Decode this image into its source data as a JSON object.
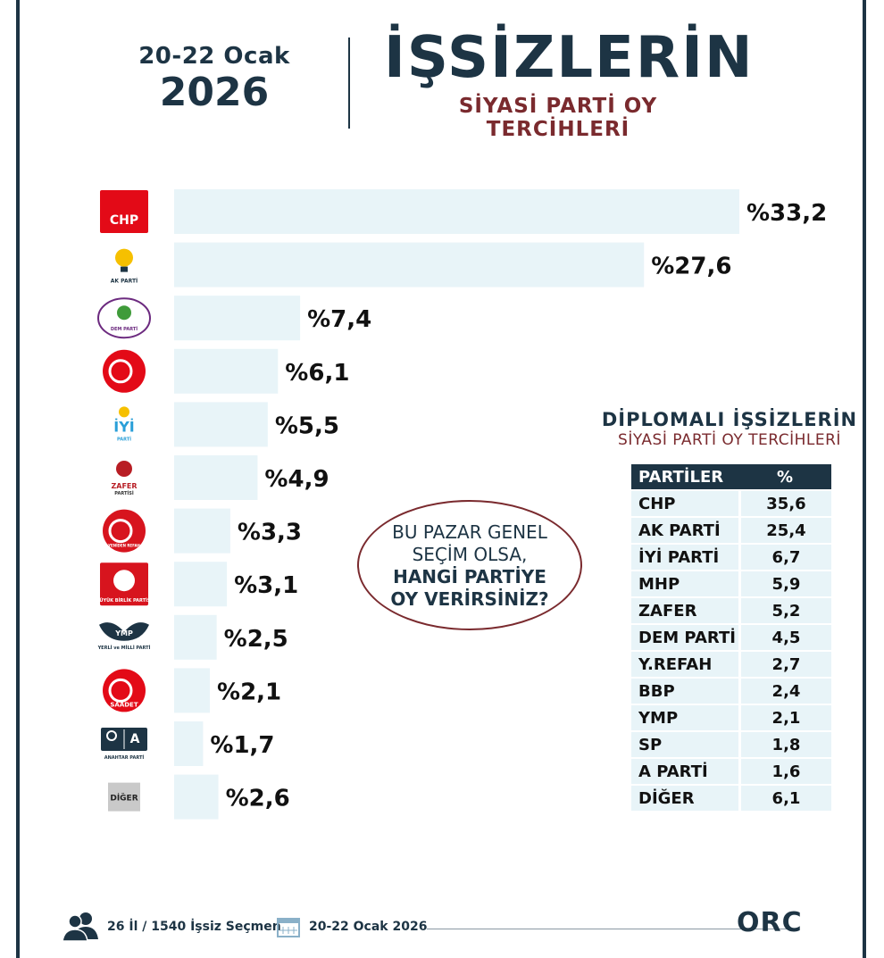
{
  "header": {
    "date_range": "20-22 Ocak",
    "year": "2026",
    "title": "İŞSİZLERİN",
    "subtitle": "SİYASİ PARTİ OY TERCİHLERİ"
  },
  "chart_data": {
    "type": "bar",
    "orientation": "horizontal",
    "categories": [
      "CHP",
      "AK PARTİ",
      "DEM PARTİ",
      "MHP",
      "İYİ",
      "ZAFER",
      "YENİDEN REFAH",
      "BBP",
      "YMP",
      "SAADET",
      "ANAHTAR PARTİ",
      "DİĞER"
    ],
    "values": [
      33.2,
      27.6,
      7.4,
      6.1,
      5.5,
      4.9,
      3.3,
      3.1,
      2.5,
      2.1,
      1.7,
      2.6
    ],
    "value_labels": [
      "%33,2",
      "%27,6",
      "%7,4",
      "%6,1",
      "%5,5",
      "%4,9",
      "%3,3",
      "%3,1",
      "%2,5",
      "%2,1",
      "%1,7",
      "%2,6"
    ],
    "logo_texts": [
      "CHP",
      "AK PARTİ",
      "DEM PARTİ",
      "",
      "İYİ",
      "ZAFER",
      "YENİDEN REFAH",
      "BÜYÜK BİRLİK PARTİSİ",
      "YMP",
      "SAADET",
      "A",
      "DİĞER"
    ],
    "logo_subtexts": [
      "",
      "",
      "",
      "",
      "PARTİ",
      "PARTİSİ",
      "",
      "",
      "YERLİ ve MİLLİ PARTİ",
      "",
      "ANAHTAR PARTİ",
      ""
    ],
    "bar_color": "#e8f4f8"
  },
  "callout": {
    "line1": "BU PAZAR GENEL",
    "line2": "SEÇİM OLSA,",
    "line3": "HANGİ PARTİYE",
    "line4": "OY VERİRSİNİZ?"
  },
  "side_table": {
    "title": "DİPLOMALI İŞSİZLERİN",
    "subtitle": "SİYASİ PARTİ OY TERCİHLERİ",
    "header_party": "PARTİLER",
    "header_pct": "%",
    "rows": [
      {
        "party": "CHP",
        "value": "35,6"
      },
      {
        "party": "AK PARTİ",
        "value": "25,4"
      },
      {
        "party": "İYİ PARTİ",
        "value": "6,7"
      },
      {
        "party": "MHP",
        "value": "5,9"
      },
      {
        "party": "ZAFER",
        "value": "5,2"
      },
      {
        "party": "DEM PARTİ",
        "value": "4,5"
      },
      {
        "party": "Y.REFAH",
        "value": "2,7"
      },
      {
        "party": "BBP",
        "value": "2,4"
      },
      {
        "party": "YMP",
        "value": "2,1"
      },
      {
        "party": "SP",
        "value": "1,8"
      },
      {
        "party": "A PARTİ",
        "value": "1,6"
      },
      {
        "party": "DİĞER",
        "value": "6,1"
      }
    ]
  },
  "footer": {
    "sample": "26 İl / 1540 İşsiz Seçmen",
    "date": "20-22 Ocak 2026",
    "brand": "ORC"
  },
  "colors": {
    "navy": "#1d3444",
    "maroon": "#7a2a2e",
    "bar": "#e8f4f8"
  }
}
